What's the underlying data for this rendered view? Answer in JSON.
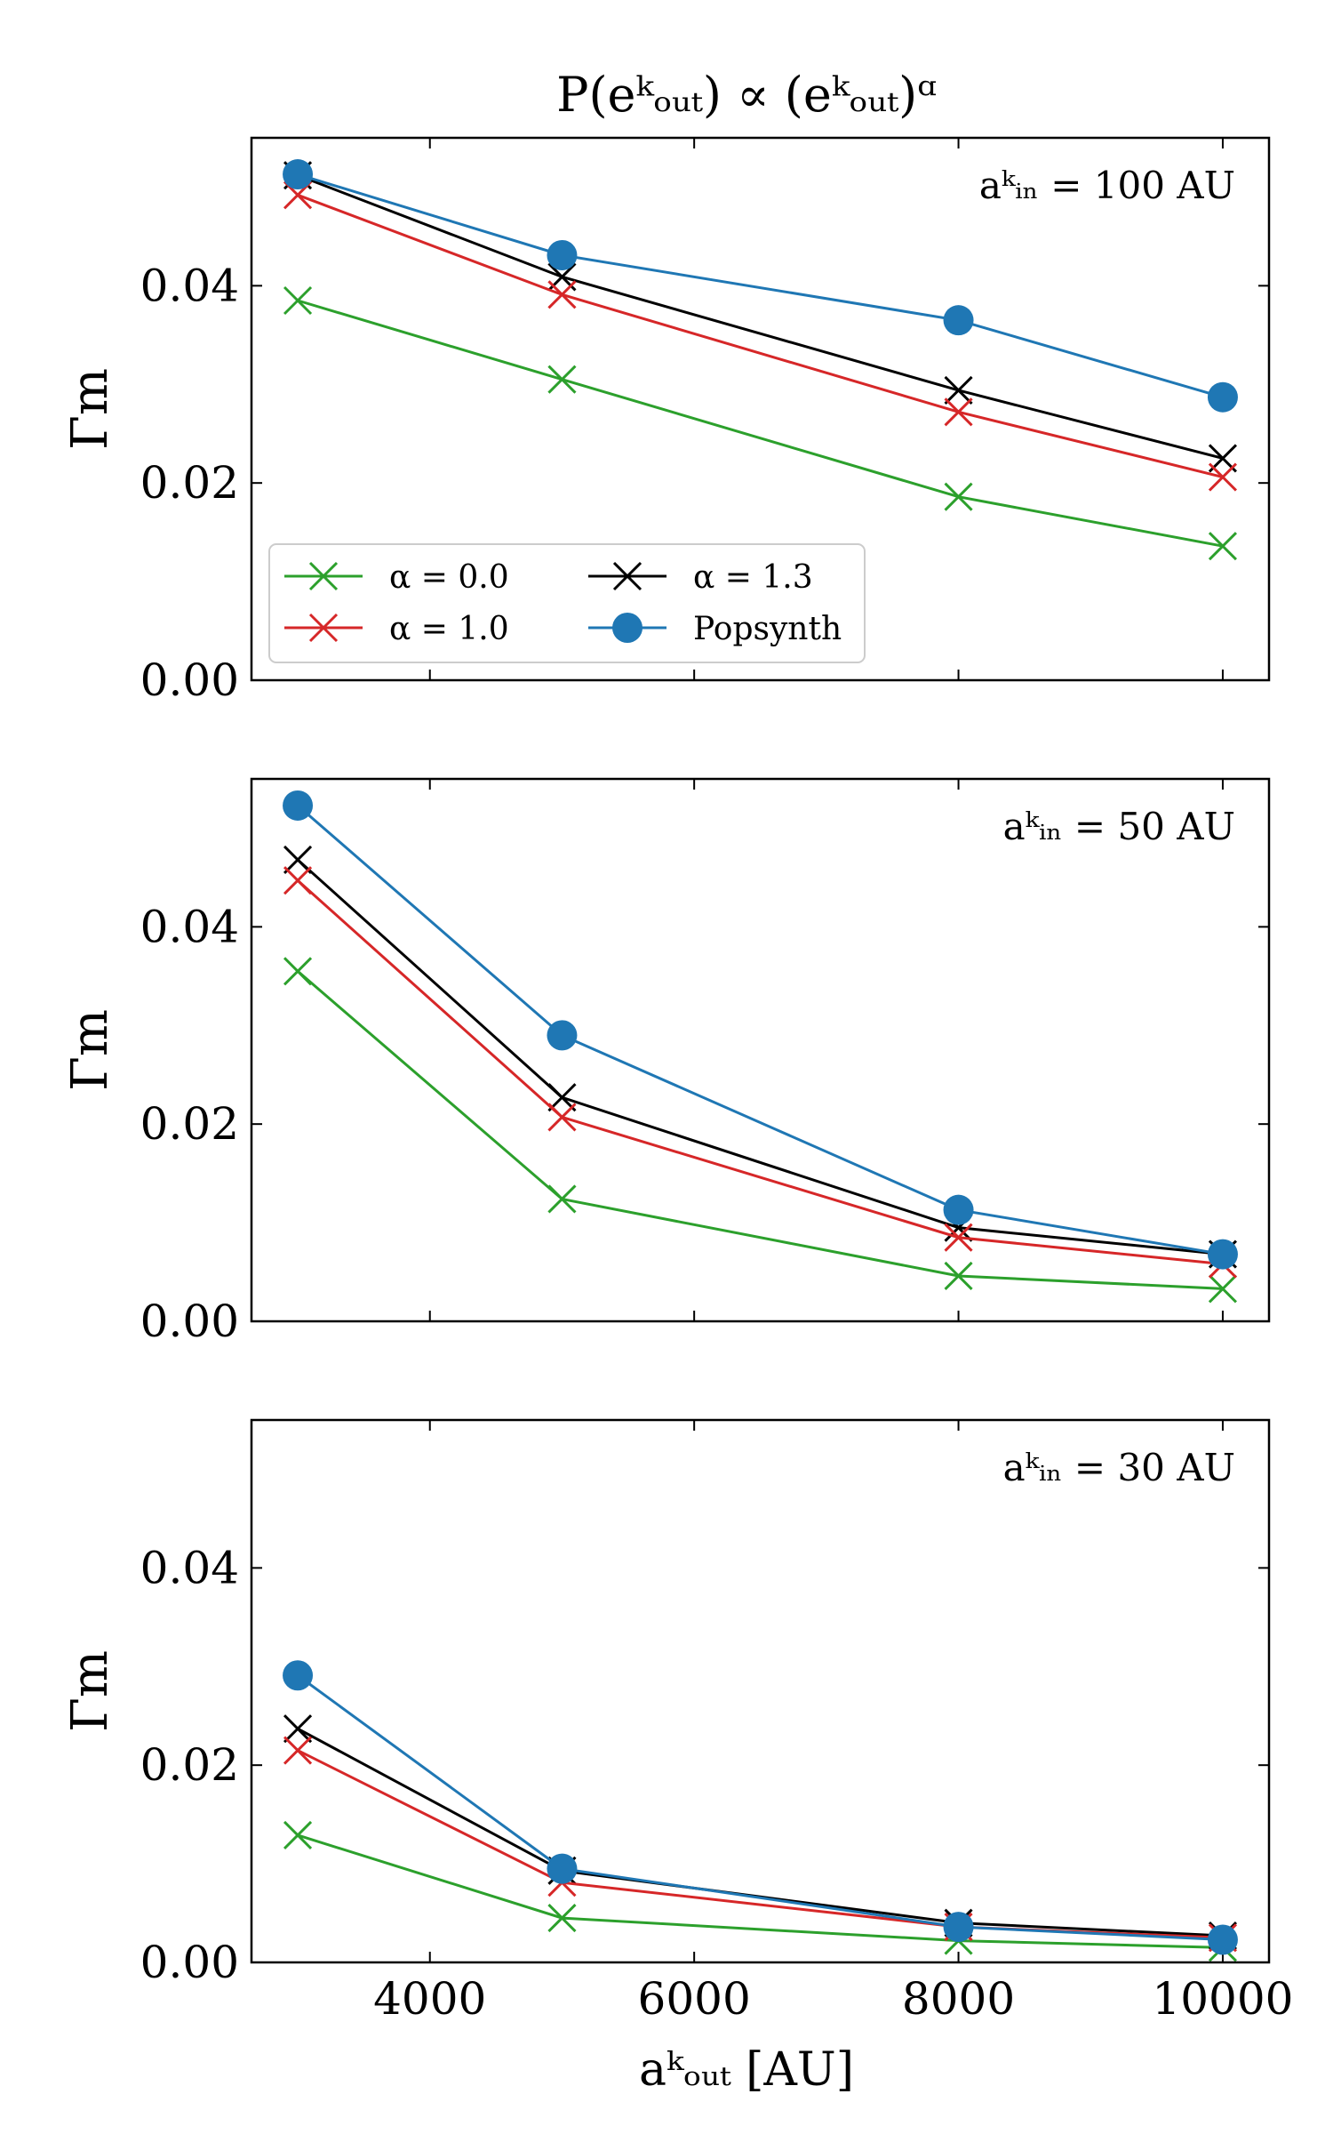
{
  "figure": {
    "title": "P(eᵏₒᵤₜ) ∝ (eᵏₒᵤₜ)ᵅ",
    "xlabel": "aᵏₒᵤₜ [AU]"
  },
  "chart_data": [
    {
      "type": "line",
      "annotation": "aᵏᵢₙ = 100 AU",
      "ylabel": "Γm",
      "xlim": [
        2650,
        10350
      ],
      "ylim": [
        0,
        0.055
      ],
      "xticks": [
        4000,
        6000,
        8000,
        10000
      ],
      "yticks": [
        0.0,
        0.02,
        0.04
      ],
      "ytick_labels": [
        "0.00",
        "0.02",
        "0.04"
      ],
      "x": [
        3000,
        5000,
        8000,
        10000
      ],
      "legend": {
        "placement": "lower-left",
        "columns": 2
      },
      "series": [
        {
          "name": "α = 0.0",
          "color": "#2ca02c",
          "marker": "x",
          "values": [
            0.0385,
            0.0305,
            0.0186,
            0.0136
          ]
        },
        {
          "name": "α = 1.3",
          "color": "#000000",
          "marker": "x",
          "values": [
            0.0512,
            0.0409,
            0.0294,
            0.0225
          ]
        },
        {
          "name": "α = 1.0",
          "color": "#d62728",
          "marker": "x",
          "values": [
            0.0492,
            0.0391,
            0.0272,
            0.0206
          ]
        },
        {
          "name": "Popsynth",
          "color": "#1f77b4",
          "marker": "o",
          "values": [
            0.0513,
            0.0431,
            0.0365,
            0.0287
          ]
        }
      ]
    },
    {
      "type": "line",
      "annotation": "aᵏᵢₙ = 50 AU",
      "ylabel": "Γm",
      "xlim": [
        2650,
        10350
      ],
      "ylim": [
        0,
        0.055
      ],
      "xticks": [
        4000,
        6000,
        8000,
        10000
      ],
      "yticks": [
        0.0,
        0.02,
        0.04
      ],
      "ytick_labels": [
        "0.00",
        "0.02",
        "0.04"
      ],
      "x": [
        3000,
        5000,
        8000,
        10000
      ],
      "series": [
        {
          "name": "α = 0.0",
          "color": "#2ca02c",
          "marker": "x",
          "values": [
            0.0355,
            0.0124,
            0.0046,
            0.0033
          ]
        },
        {
          "name": "α = 1.3",
          "color": "#000000",
          "marker": "x",
          "values": [
            0.0468,
            0.0227,
            0.0095,
            0.0068
          ]
        },
        {
          "name": "α = 1.0",
          "color": "#d62728",
          "marker": "x",
          "values": [
            0.0447,
            0.0207,
            0.0085,
            0.0058
          ]
        },
        {
          "name": "Popsynth",
          "color": "#1f77b4",
          "marker": "o",
          "values": [
            0.0523,
            0.029,
            0.0113,
            0.0068
          ]
        }
      ]
    },
    {
      "type": "line",
      "annotation": "aᵏᵢₙ = 30 AU",
      "ylabel": "Γm",
      "xlim": [
        2650,
        10350
      ],
      "ylim": [
        0,
        0.055
      ],
      "xticks": [
        4000,
        6000,
        8000,
        10000
      ],
      "xtick_labels": [
        "4000",
        "6000",
        "8000",
        "10000"
      ],
      "yticks": [
        0.0,
        0.02,
        0.04
      ],
      "ytick_labels": [
        "0.00",
        "0.02",
        "0.04"
      ],
      "x": [
        3000,
        5000,
        8000,
        10000
      ],
      "series": [
        {
          "name": "α = 0.0",
          "color": "#2ca02c",
          "marker": "x",
          "values": [
            0.0129,
            0.0045,
            0.0022,
            0.0015
          ]
        },
        {
          "name": "α = 1.3",
          "color": "#000000",
          "marker": "x",
          "values": [
            0.0237,
            0.0093,
            0.004,
            0.0027
          ]
        },
        {
          "name": "α = 1.0",
          "color": "#d62728",
          "marker": "x",
          "values": [
            0.0215,
            0.0081,
            0.0036,
            0.0025
          ]
        },
        {
          "name": "Popsynth",
          "color": "#1f77b4",
          "marker": "o",
          "values": [
            0.0291,
            0.0095,
            0.0036,
            0.0023
          ]
        }
      ]
    }
  ]
}
